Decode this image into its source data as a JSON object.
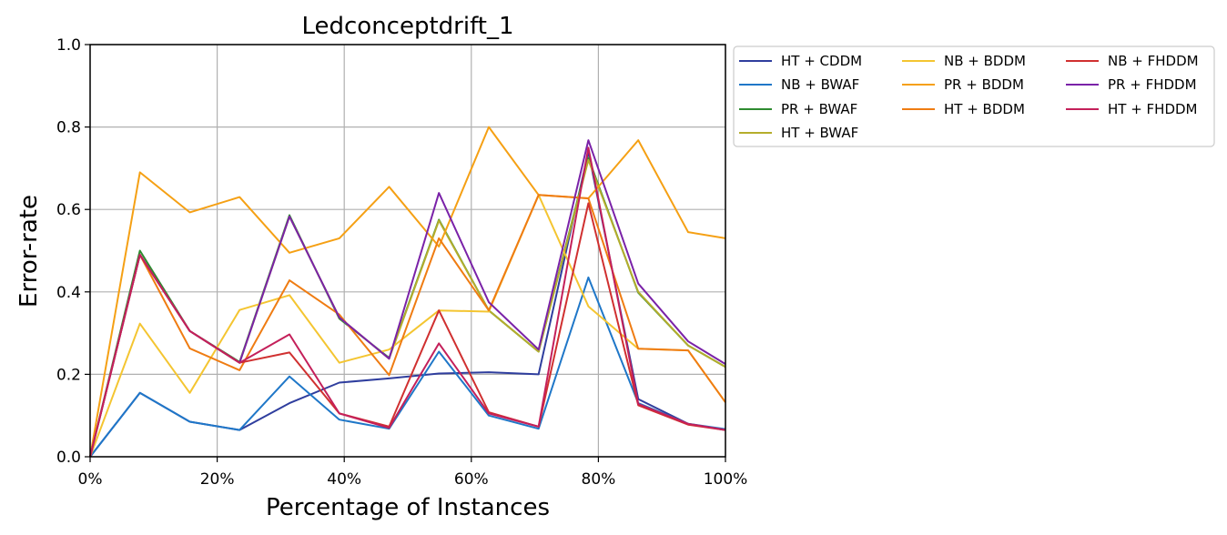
{
  "chart_data": {
    "type": "line",
    "title": "Ledconceptdrift_1",
    "xlabel": "Percentage of Instances",
    "ylabel": "Error-rate",
    "xlim": [
      0,
      100
    ],
    "ylim": [
      0,
      1.0
    ],
    "xticks": [
      0,
      20,
      40,
      60,
      80,
      100
    ],
    "xtick_labels": [
      "0%",
      "20%",
      "40%",
      "60%",
      "80%",
      "100%"
    ],
    "yticks": [
      0.0,
      0.2,
      0.4,
      0.6,
      0.8,
      1.0
    ],
    "ytick_labels": [
      "0.0",
      "0.2",
      "0.4",
      "0.6",
      "0.8",
      "1.0"
    ],
    "grid": true,
    "legend_position": "outside-top-right",
    "x": [
      0,
      7.84,
      15.69,
      23.53,
      31.37,
      39.22,
      47.06,
      54.9,
      62.75,
      70.59,
      78.43,
      86.27,
      94.12,
      100
    ],
    "series": [
      {
        "name": "HT + CDDM",
        "color": "#2f3e9e",
        "values": [
          0,
          0.155,
          0.085,
          0.065,
          0.13,
          0.18,
          0.19,
          0.202,
          0.205,
          0.2,
          0.74,
          0.14,
          0.08,
          0.065
        ]
      },
      {
        "name": "NB + BWAF",
        "color": "#1f77c8",
        "values": [
          0,
          0.155,
          0.085,
          0.065,
          0.195,
          0.09,
          0.068,
          0.255,
          0.1,
          0.068,
          0.435,
          0.13,
          0.08,
          0.067
        ]
      },
      {
        "name": "PR + BWAF",
        "color": "#2e8b30",
        "values": [
          0,
          0.5,
          0.305,
          0.23,
          0.586,
          0.335,
          0.24,
          0.575,
          0.355,
          0.255,
          0.725,
          0.398,
          0.27,
          0.218
        ]
      },
      {
        "name": "HT + BWAF",
        "color": "#b5ad2c",
        "values": [
          0,
          0.49,
          0.305,
          0.228,
          0.583,
          0.338,
          0.238,
          0.573,
          0.355,
          0.255,
          0.72,
          0.4,
          0.27,
          0.218
        ]
      },
      {
        "name": "NB + BDDM",
        "color": "#f4c531",
        "values": [
          0,
          0.323,
          0.155,
          0.356,
          0.392,
          0.228,
          0.26,
          0.355,
          0.352,
          0.635,
          0.365,
          0.262,
          0.258,
          0.132
        ]
      },
      {
        "name": "PR + BDDM",
        "color": "#f5a014",
        "values": [
          0,
          0.69,
          0.593,
          0.63,
          0.495,
          0.53,
          0.655,
          0.51,
          0.8,
          0.635,
          0.627,
          0.768,
          0.545,
          0.53
        ]
      },
      {
        "name": "HT + BDDM",
        "color": "#ef7c12",
        "values": [
          0,
          0.49,
          0.263,
          0.21,
          0.428,
          0.345,
          0.198,
          0.53,
          0.355,
          0.635,
          0.627,
          0.262,
          0.258,
          0.132
        ]
      },
      {
        "name": "NB + FHDDM",
        "color": "#d03030",
        "values": [
          0,
          0.49,
          0.305,
          0.228,
          0.253,
          0.105,
          0.073,
          0.355,
          0.108,
          0.073,
          0.615,
          0.125,
          0.078,
          0.065
        ]
      },
      {
        "name": "PR + FHDDM",
        "color": "#7a22a8",
        "values": [
          0,
          0.49,
          0.305,
          0.228,
          0.583,
          0.338,
          0.238,
          0.64,
          0.375,
          0.26,
          0.768,
          0.42,
          0.28,
          0.225
        ]
      },
      {
        "name": "HT + FHDDM",
        "color": "#c4205a",
        "values": [
          0,
          0.49,
          0.305,
          0.228,
          0.297,
          0.105,
          0.07,
          0.275,
          0.105,
          0.073,
          0.75,
          0.128,
          0.08,
          0.065
        ]
      }
    ]
  }
}
